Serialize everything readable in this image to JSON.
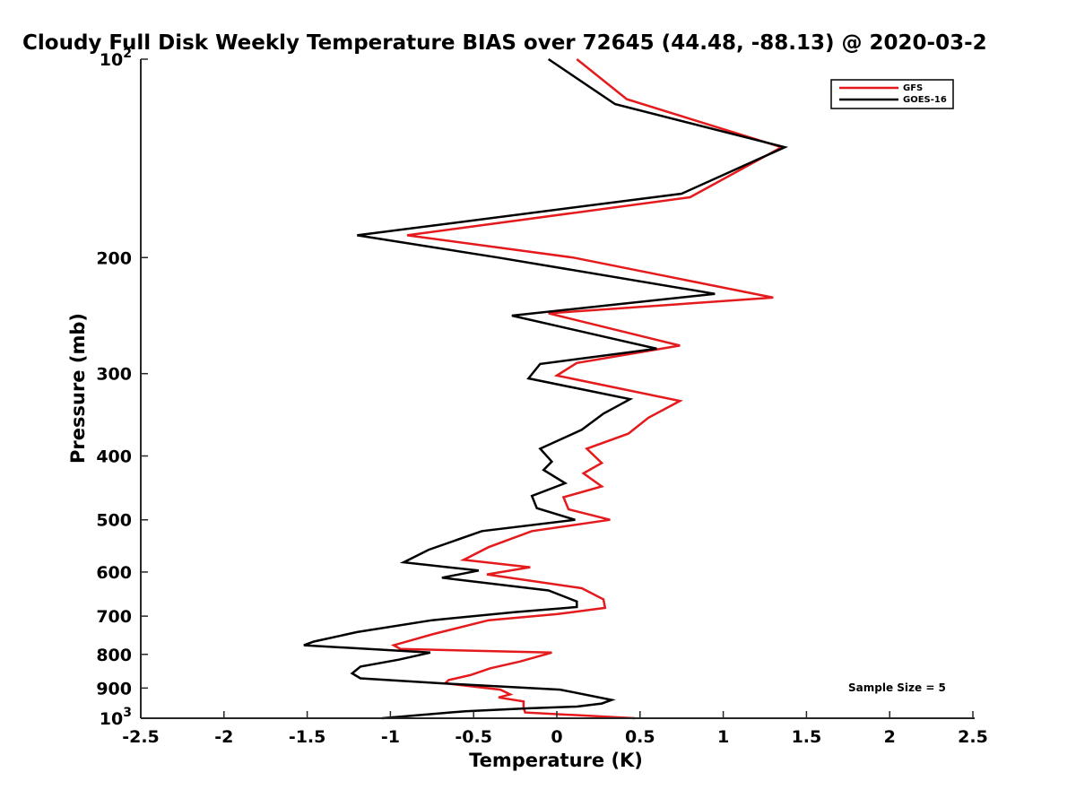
{
  "chart_data": {
    "type": "line",
    "title": "Cloudy Full Disk Weekly Temperature BIAS over 72645 (44.48, -88.13) @ 2020-03-2",
    "xlabel": "Temperature (K)",
    "ylabel": "Pressure (mb)",
    "xlim": [
      -2.5,
      2.5
    ],
    "ylim": [
      100,
      1000
    ],
    "y_scale": "log",
    "y_reversed": true,
    "grid": false,
    "legend_position": "top-right",
    "x_ticks": [
      -2.5,
      -2,
      -1.5,
      -1,
      -0.5,
      0,
      0.5,
      1,
      1.5,
      2,
      2.5
    ],
    "x_tick_labels": [
      "-2.5",
      "-2",
      "-1.5",
      "-1",
      "-0.5",
      "0",
      "0.5",
      "1",
      "1.5",
      "2",
      "2.5"
    ],
    "y_ticks": [
      100,
      200,
      300,
      400,
      500,
      600,
      700,
      800,
      900,
      1000
    ],
    "y_tick_labels": [
      {
        "base": "10",
        "sup": "2"
      },
      {
        "base": "200",
        "sup": ""
      },
      {
        "base": "300",
        "sup": ""
      },
      {
        "base": "400",
        "sup": ""
      },
      {
        "base": "500",
        "sup": ""
      },
      {
        "base": "600",
        "sup": ""
      },
      {
        "base": "700",
        "sup": ""
      },
      {
        "base": "800",
        "sup": ""
      },
      {
        "base": "900",
        "sup": ""
      },
      {
        "base": "10",
        "sup": "3"
      }
    ],
    "annotation": "Sample Size = 5",
    "series": [
      {
        "name": "GFS",
        "color": "#e41a1c",
        "points": [
          {
            "x": 0.12,
            "y": 100
          },
          {
            "x": 0.42,
            "y": 115
          },
          {
            "x": 1.35,
            "y": 136
          },
          {
            "x": 0.8,
            "y": 162
          },
          {
            "x": -0.9,
            "y": 185
          },
          {
            "x": 0.1,
            "y": 200
          },
          {
            "x": 1.3,
            "y": 230
          },
          {
            "x": -0.05,
            "y": 243
          },
          {
            "x": 0.74,
            "y": 272
          },
          {
            "x": 0.12,
            "y": 289
          },
          {
            "x": 0.0,
            "y": 302
          },
          {
            "x": 0.74,
            "y": 330
          },
          {
            "x": 0.55,
            "y": 350
          },
          {
            "x": 0.43,
            "y": 370
          },
          {
            "x": 0.18,
            "y": 390
          },
          {
            "x": 0.27,
            "y": 410
          },
          {
            "x": 0.16,
            "y": 425
          },
          {
            "x": 0.27,
            "y": 445
          },
          {
            "x": 0.04,
            "y": 462
          },
          {
            "x": 0.07,
            "y": 482
          },
          {
            "x": 0.32,
            "y": 500
          },
          {
            "x": -0.15,
            "y": 520
          },
          {
            "x": -0.41,
            "y": 550
          },
          {
            "x": -0.56,
            "y": 575
          },
          {
            "x": -0.16,
            "y": 590
          },
          {
            "x": -0.42,
            "y": 605
          },
          {
            "x": 0.15,
            "y": 635
          },
          {
            "x": 0.28,
            "y": 660
          },
          {
            "x": 0.29,
            "y": 680
          },
          {
            "x": 0.0,
            "y": 695
          },
          {
            "x": -0.41,
            "y": 710
          },
          {
            "x": -0.74,
            "y": 745
          },
          {
            "x": -0.98,
            "y": 775
          },
          {
            "x": -0.94,
            "y": 785
          },
          {
            "x": -0.03,
            "y": 795
          },
          {
            "x": -0.22,
            "y": 820
          },
          {
            "x": -0.4,
            "y": 840
          },
          {
            "x": -0.52,
            "y": 860
          },
          {
            "x": -0.65,
            "y": 875
          },
          {
            "x": -0.67,
            "y": 885
          },
          {
            "x": -0.34,
            "y": 905
          },
          {
            "x": -0.28,
            "y": 920
          },
          {
            "x": -0.35,
            "y": 930
          },
          {
            "x": -0.2,
            "y": 943
          },
          {
            "x": -0.2,
            "y": 965
          },
          {
            "x": -0.19,
            "y": 980
          },
          {
            "x": 0.47,
            "y": 1000
          }
        ]
      },
      {
        "name": "GOES-16",
        "color": "#000000",
        "points": [
          {
            "x": -0.05,
            "y": 100
          },
          {
            "x": 0.35,
            "y": 117
          },
          {
            "x": 1.37,
            "y": 136
          },
          {
            "x": 0.75,
            "y": 160
          },
          {
            "x": -1.2,
            "y": 185
          },
          {
            "x": -0.35,
            "y": 200
          },
          {
            "x": 0.95,
            "y": 227
          },
          {
            "x": -0.27,
            "y": 245
          },
          {
            "x": 0.6,
            "y": 275
          },
          {
            "x": -0.1,
            "y": 290
          },
          {
            "x": -0.17,
            "y": 305
          },
          {
            "x": 0.44,
            "y": 328
          },
          {
            "x": 0.28,
            "y": 345
          },
          {
            "x": 0.15,
            "y": 365
          },
          {
            "x": -0.1,
            "y": 390
          },
          {
            "x": -0.03,
            "y": 408
          },
          {
            "x": -0.08,
            "y": 420
          },
          {
            "x": 0.05,
            "y": 440
          },
          {
            "x": -0.15,
            "y": 460
          },
          {
            "x": -0.12,
            "y": 480
          },
          {
            "x": 0.11,
            "y": 500
          },
          {
            "x": -0.45,
            "y": 520
          },
          {
            "x": -0.77,
            "y": 555
          },
          {
            "x": -0.92,
            "y": 580
          },
          {
            "x": -0.47,
            "y": 597
          },
          {
            "x": -0.69,
            "y": 612
          },
          {
            "x": -0.05,
            "y": 640
          },
          {
            "x": 0.12,
            "y": 665
          },
          {
            "x": 0.12,
            "y": 678
          },
          {
            "x": -0.25,
            "y": 690
          },
          {
            "x": -0.75,
            "y": 710
          },
          {
            "x": -1.2,
            "y": 740
          },
          {
            "x": -1.46,
            "y": 765
          },
          {
            "x": -1.52,
            "y": 775
          },
          {
            "x": -0.76,
            "y": 795
          },
          {
            "x": -0.95,
            "y": 815
          },
          {
            "x": -1.18,
            "y": 835
          },
          {
            "x": -1.23,
            "y": 855
          },
          {
            "x": -1.18,
            "y": 870
          },
          {
            "x": -0.7,
            "y": 885
          },
          {
            "x": 0.02,
            "y": 905
          },
          {
            "x": 0.33,
            "y": 938
          },
          {
            "x": 0.27,
            "y": 950
          },
          {
            "x": 0.12,
            "y": 960
          },
          {
            "x": -0.18,
            "y": 966
          },
          {
            "x": -0.55,
            "y": 976
          },
          {
            "x": -1.05,
            "y": 1000
          }
        ]
      }
    ]
  }
}
